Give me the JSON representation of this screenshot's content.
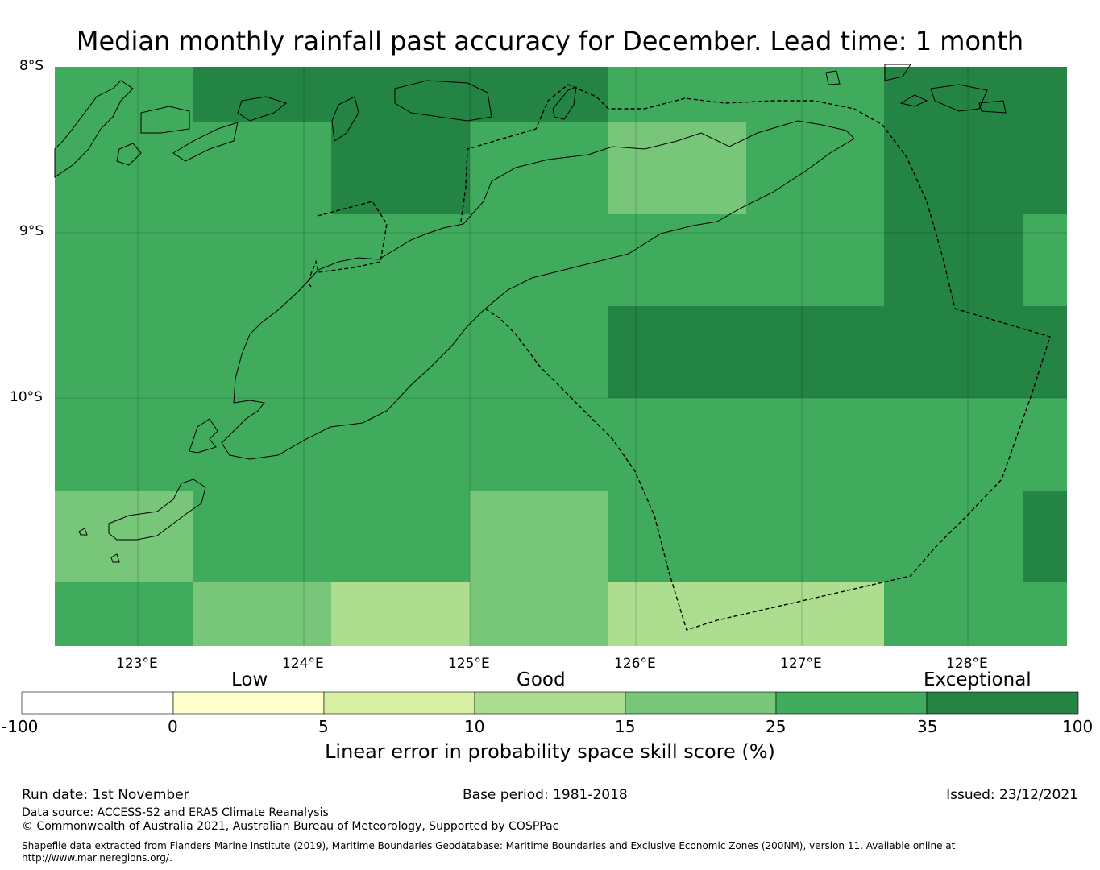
{
  "title": "Median monthly rainfall past accuracy for December. Lead time: 1 month",
  "map": {
    "lat_labels": [
      "8°S",
      "9°S",
      "10°S"
    ],
    "lon_labels": [
      "123°E",
      "124°E",
      "125°E",
      "126°E",
      "127°E",
      "128°E"
    ],
    "lon_range": [
      122.5,
      128.6
    ],
    "lat_range": [
      -11.5,
      -8.0
    ],
    "cells": [
      [
        25,
        35,
        35,
        35,
        25,
        25,
        35,
        35
      ],
      [
        25,
        25,
        35,
        25,
        15,
        25,
        35,
        35
      ],
      [
        25,
        25,
        25,
        25,
        25,
        25,
        35,
        25
      ],
      [
        25,
        25,
        25,
        25,
        35,
        35,
        35,
        35
      ],
      [
        25,
        25,
        25,
        25,
        25,
        25,
        25,
        25
      ],
      [
        15,
        25,
        25,
        15,
        25,
        25,
        25,
        35
      ],
      [
        25,
        15,
        10,
        15,
        10,
        10,
        25,
        25
      ]
    ]
  },
  "legend": {
    "categories": [
      "Low",
      "Good",
      "Exceptional"
    ],
    "ticks": [
      "-100",
      "0",
      "5",
      "10",
      "15",
      "25",
      "35",
      "100"
    ],
    "colors": [
      "#ffffff",
      "#ffffcc",
      "#d9f0a3",
      "#addd8e",
      "#78c679",
      "#41ab5d",
      "#238443"
    ],
    "label": "Linear error in probability space skill score (%)"
  },
  "footer": {
    "run_date": "Run date: 1st November",
    "base_period": "Base period: 1981-2018",
    "issued": "Issued: 23/12/2021",
    "data_source": "Data source: ACCESS-S2 and ERA5 Climate Reanalysis",
    "copyright": "© Commonwealth of Australia 2021, Australian Bureau of Meteorology, Supported by COSPPac",
    "shapefile_line1": "Shapefile data extracted from Flanders Marine Institute (2019), Maritime Boundaries Geodatabase: Maritime Boundaries and Exclusive Economic Zones (200NM), version 11. Available online at",
    "shapefile_line2": "http://www.marineregions.org/."
  }
}
